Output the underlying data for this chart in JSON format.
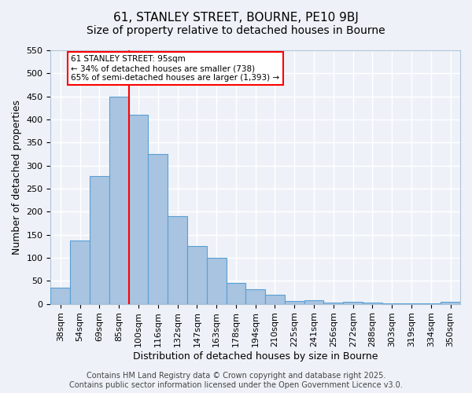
{
  "title": "61, STANLEY STREET, BOURNE, PE10 9BJ",
  "subtitle": "Size of property relative to detached houses in Bourne",
  "xlabel": "Distribution of detached houses by size in Bourne",
  "ylabel": "Number of detached properties",
  "categories": [
    "38sqm",
    "54sqm",
    "69sqm",
    "85sqm",
    "100sqm",
    "116sqm",
    "132sqm",
    "147sqm",
    "163sqm",
    "178sqm",
    "194sqm",
    "210sqm",
    "225sqm",
    "241sqm",
    "256sqm",
    "272sqm",
    "288sqm",
    "303sqm",
    "319sqm",
    "334sqm",
    "350sqm"
  ],
  "values": [
    35,
    137,
    278,
    450,
    410,
    325,
    190,
    125,
    100,
    45,
    32,
    19,
    6,
    7,
    3,
    4,
    3,
    1,
    1,
    1,
    5
  ],
  "bar_color": "#a8c4e0",
  "bar_edge_color": "#5a9fd4",
  "ylim": [
    0,
    550
  ],
  "yticks": [
    0,
    50,
    100,
    150,
    200,
    250,
    300,
    350,
    400,
    450,
    500,
    550
  ],
  "vline_color": "red",
  "vline_position": 3.5,
  "annotation_title": "61 STANLEY STREET: 95sqm",
  "annotation_line1": "← 34% of detached houses are smaller (738)",
  "annotation_line2": "65% of semi-detached houses are larger (1,393) →",
  "annotation_box_color": "white",
  "annotation_box_edge_color": "red",
  "footer1": "Contains HM Land Registry data © Crown copyright and database right 2025.",
  "footer2": "Contains public sector information licensed under the Open Government Licence v3.0.",
  "background_color": "#eef2f8",
  "grid_color": "white",
  "title_fontsize": 11,
  "subtitle_fontsize": 10,
  "axis_label_fontsize": 9,
  "tick_fontsize": 8,
  "footer_fontsize": 7
}
